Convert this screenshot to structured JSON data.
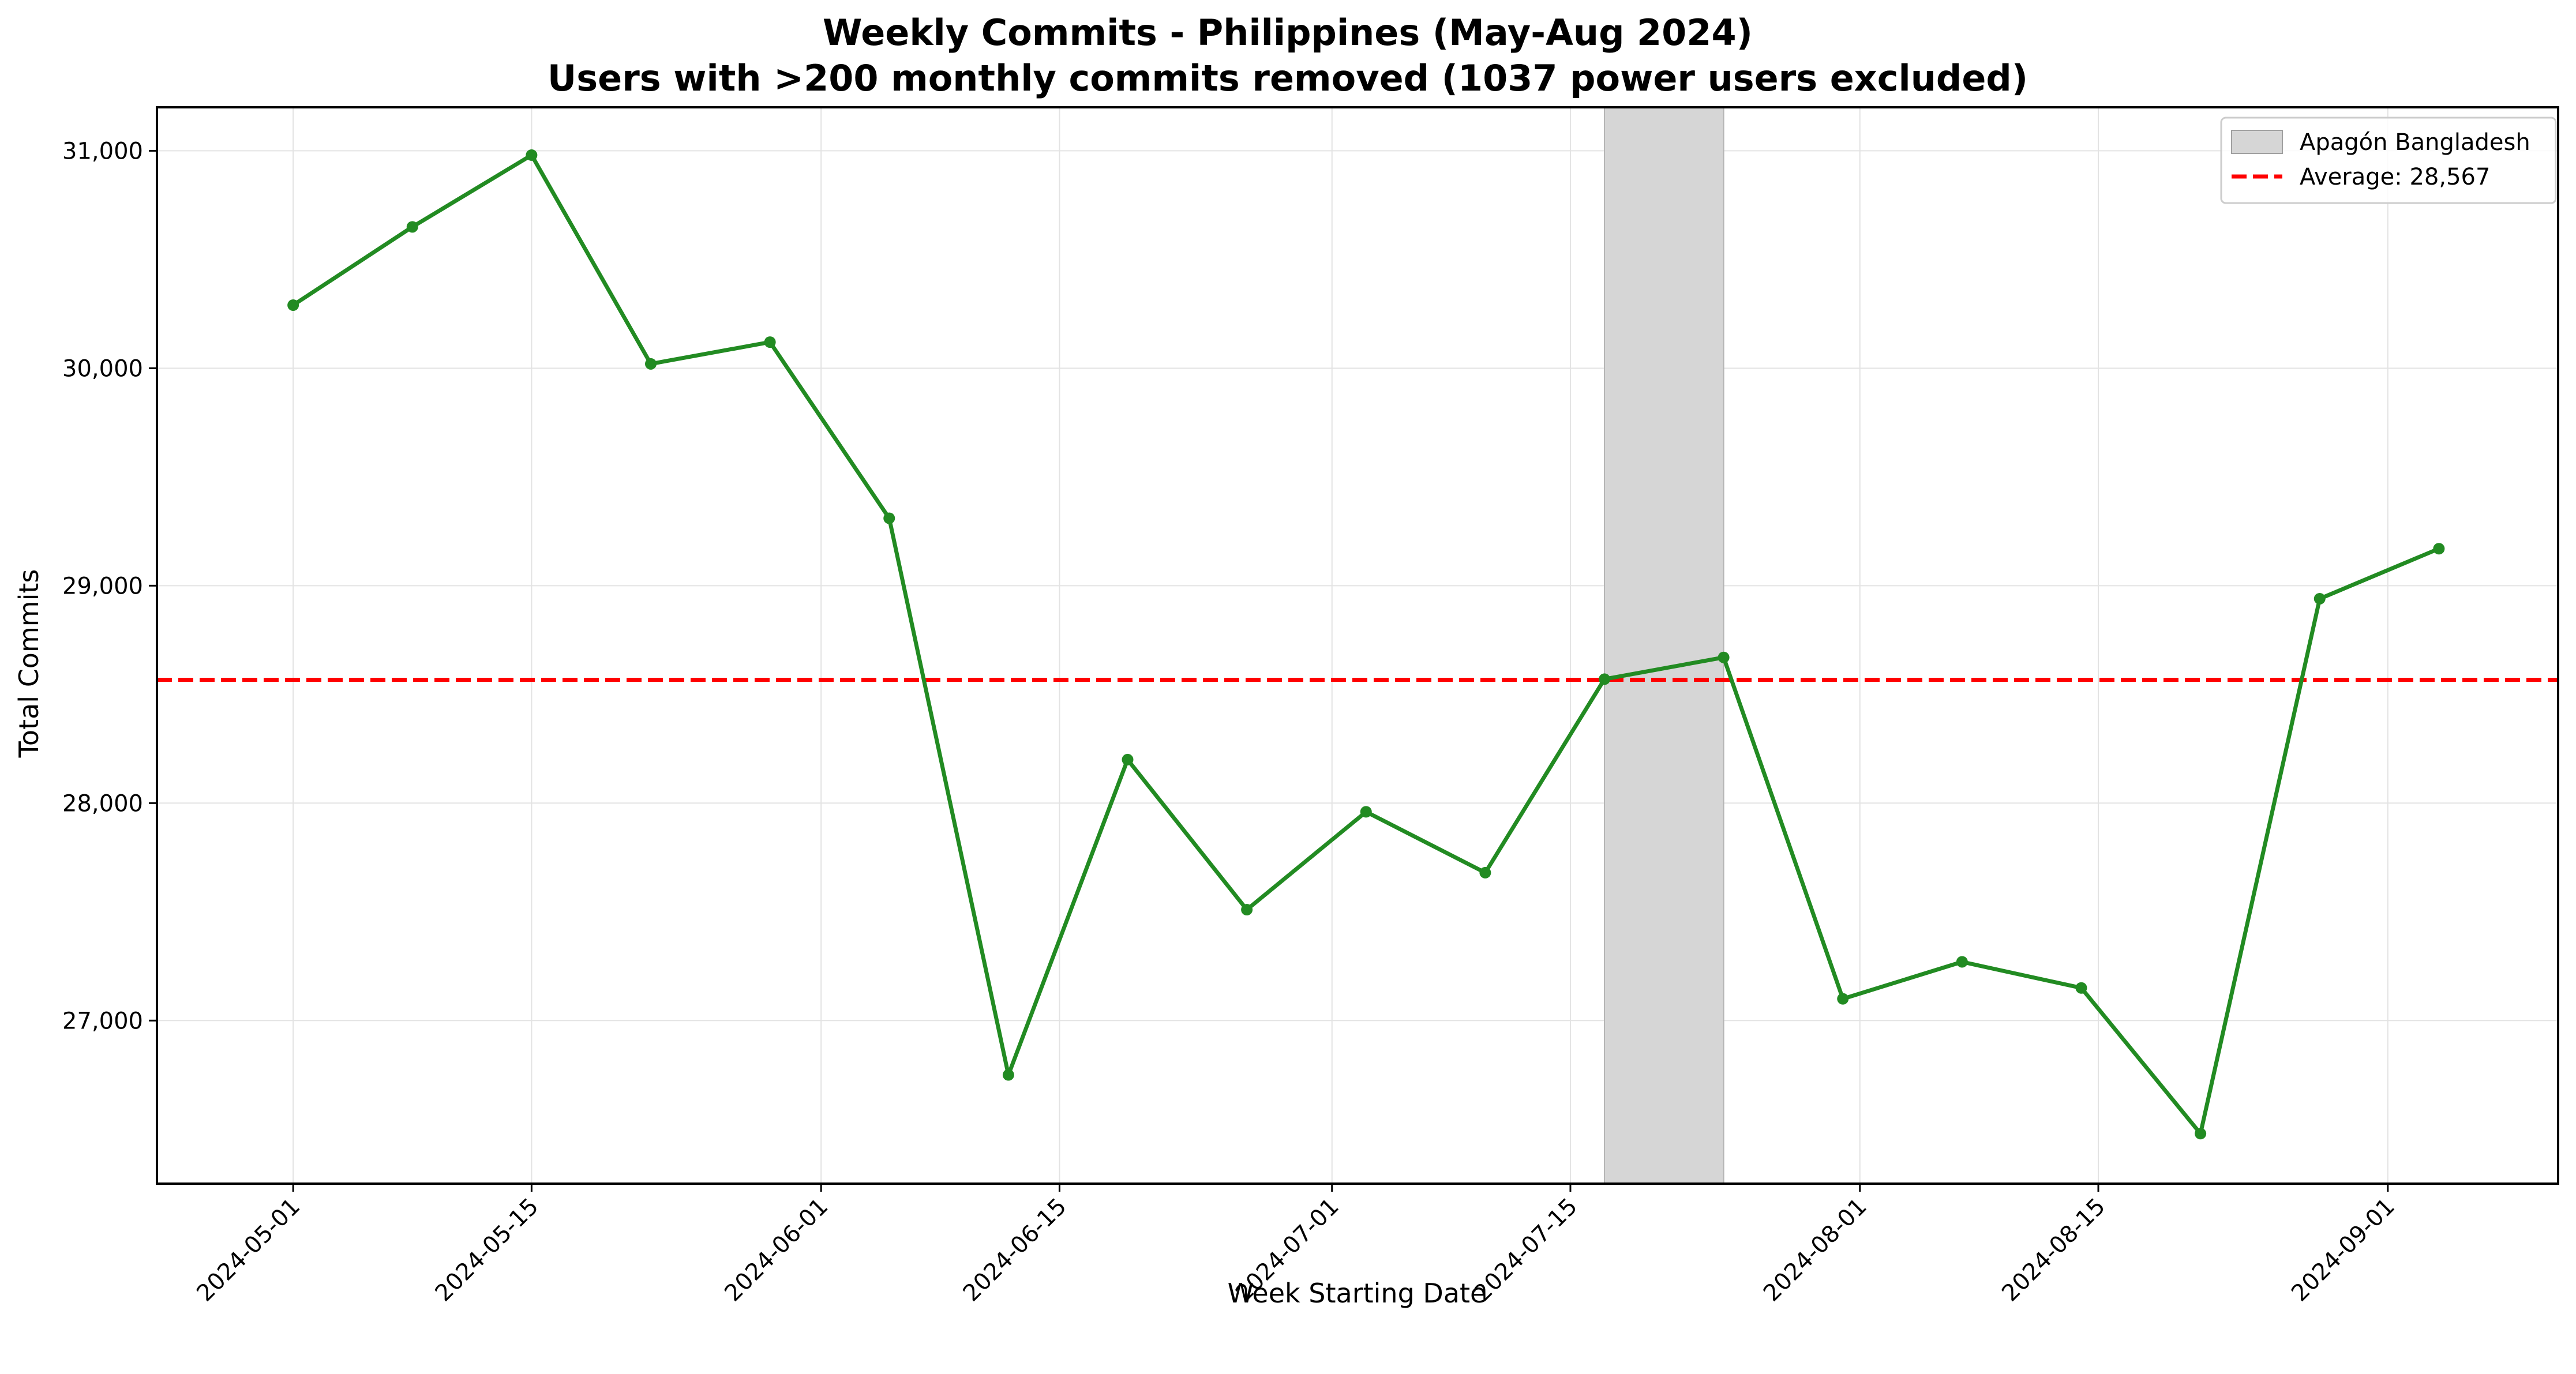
{
  "chart_data": {
    "type": "line",
    "title": "Weekly Commits - Philippines (May-Aug 2024)",
    "subtitle": "Users with >200 monthly commits removed (1037 power users excluded)",
    "xlabel": "Week Starting Date",
    "ylabel": "Total Commits",
    "x": [
      "2024-05-01",
      "2024-05-08",
      "2024-05-15",
      "2024-05-22",
      "2024-05-29",
      "2024-06-05",
      "2024-06-12",
      "2024-06-19",
      "2024-06-26",
      "2024-07-03",
      "2024-07-10",
      "2024-07-17",
      "2024-07-24",
      "2024-07-31",
      "2024-08-07",
      "2024-08-14",
      "2024-08-21",
      "2024-08-28",
      "2024-09-04"
    ],
    "series": [
      {
        "values": [
          30290,
          30650,
          30980,
          30020,
          30120,
          29310,
          26750,
          28200,
          27510,
          27960,
          27680,
          28570,
          28670,
          27100,
          27270,
          27150,
          26480,
          28940,
          29170
        ],
        "color": "#228B22"
      }
    ],
    "average": {
      "value": 28567,
      "label": "Average: 28,567",
      "color": "#ff0000"
    },
    "shaded_region": {
      "start": "2024-07-17",
      "end": "2024-07-24",
      "label": "Apagón Bangladesh",
      "color": "#d6d6d6"
    },
    "xlim": [
      "2024-04-23",
      "2024-09-11"
    ],
    "ylim": [
      26250,
      31200
    ],
    "x_ticks": [
      "2024-05-01",
      "2024-05-15",
      "2024-06-01",
      "2024-06-15",
      "2024-07-01",
      "2024-07-15",
      "2024-08-01",
      "2024-08-15",
      "2024-09-01"
    ],
    "y_ticks": [
      27000,
      28000,
      29000,
      30000,
      31000
    ],
    "y_tick_labels": [
      "27,000",
      "28,000",
      "29,000",
      "30,000",
      "31,000"
    ],
    "grid": true,
    "legend_position": "top-right"
  }
}
